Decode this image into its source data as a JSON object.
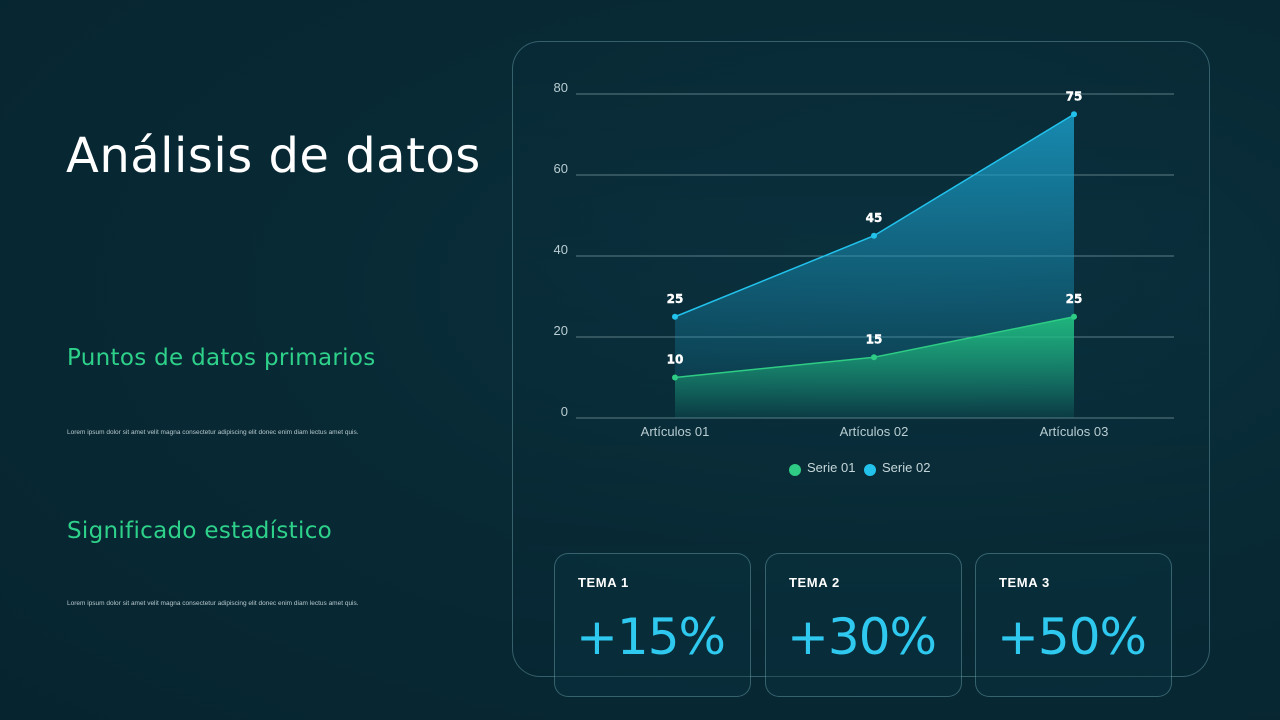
{
  "slide": {
    "title": "Análisis de datos",
    "sections": [
      {
        "heading": "Puntos de datos primarios",
        "body": "Lorem ipsum dolor sit amet velit magna consectetur adipiscing elit donec enim diam lectus amet quis."
      },
      {
        "heading": "Significado estadístico",
        "body": "Lorem ipsum dolor sit amet velit magna consectetur adipiscing elit donec enim diam lectus amet quis."
      }
    ]
  },
  "colors": {
    "accent_green": "#2ed18a",
    "accent_cyan": "#2fc9f0",
    "series_01": "#2ecc84",
    "series_02": "#22c2ec"
  },
  "chart_data": {
    "type": "area",
    "categories": [
      "Artículos 01",
      "Artículos 02",
      "Artículos 03"
    ],
    "series": [
      {
        "name": "Serie 01",
        "values": [
          10,
          15,
          25
        ]
      },
      {
        "name": "Serie 02",
        "values": [
          25,
          45,
          75
        ]
      }
    ],
    "ylim": [
      0,
      80
    ],
    "yticks": [
      0,
      20,
      40,
      60,
      80
    ],
    "grid": true,
    "legend": "bottom",
    "data_labels": true
  },
  "cards": [
    {
      "label": "TEMA 1",
      "value": "+15%"
    },
    {
      "label": "TEMA 2",
      "value": "+30%"
    },
    {
      "label": "TEMA 3",
      "value": "+50%"
    }
  ]
}
